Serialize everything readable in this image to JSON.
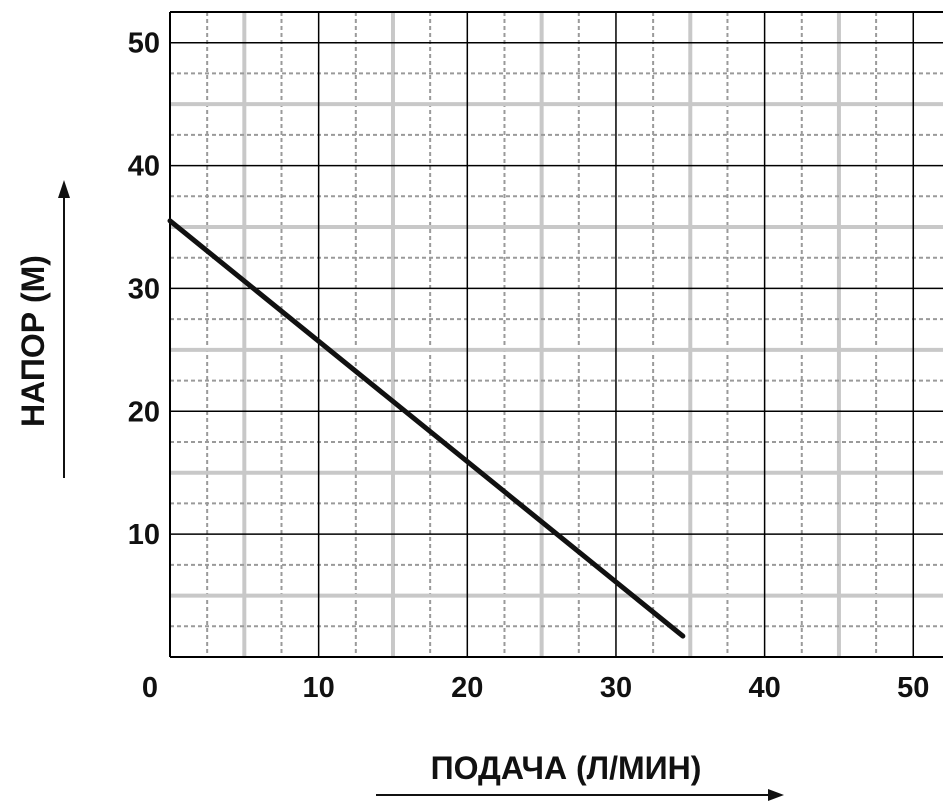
{
  "chart_data": {
    "type": "line",
    "xlabel": "ПОДАЧА (Л/МИН)",
    "ylabel": "НАПОР (М)",
    "xlim": [
      0,
      52
    ],
    "ylim": [
      0,
      52.5
    ],
    "x_ticks": [
      {
        "value": 0,
        "label": "0"
      },
      {
        "value": 10,
        "label": "10"
      },
      {
        "value": 20,
        "label": "20"
      },
      {
        "value": 30,
        "label": "30"
      },
      {
        "value": 40,
        "label": "40"
      },
      {
        "value": 50,
        "label": "50"
      }
    ],
    "y_ticks": [
      {
        "value": 10,
        "label": "10"
      },
      {
        "value": 20,
        "label": "20"
      },
      {
        "value": 30,
        "label": "30"
      },
      {
        "value": 40,
        "label": "40"
      },
      {
        "value": 50,
        "label": "50"
      }
    ],
    "grid": true,
    "series": [
      {
        "x": [
          0,
          34.5
        ],
        "y": [
          35.5,
          1.7
        ]
      }
    ],
    "colors": {
      "line": "#111111",
      "major_grid": "#000000",
      "minor_grid": "#9a9a9a",
      "band": "#c8c8c8"
    }
  }
}
